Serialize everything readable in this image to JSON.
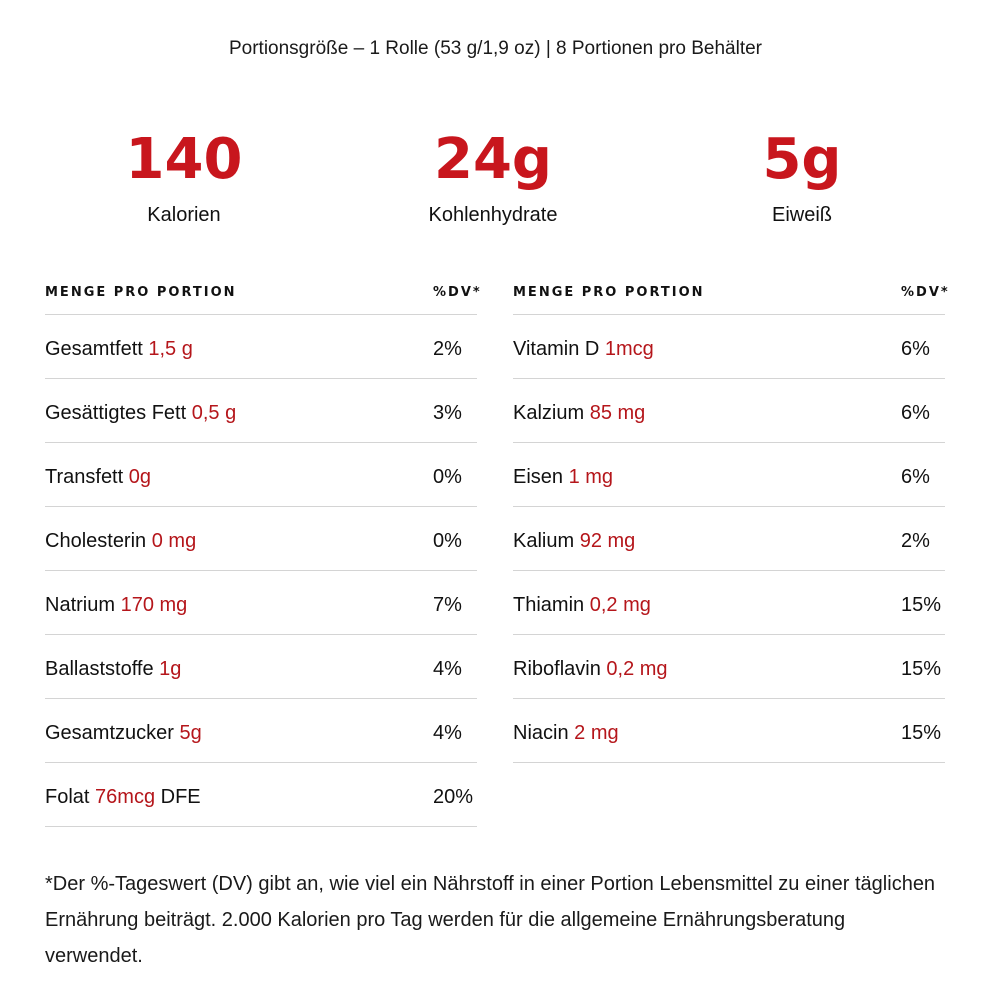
{
  "serving_text": "Portionsgröße – 1 Rolle (53 g/1,9 oz) | 8 Portionen pro Behälter",
  "stats": [
    {
      "value": "140",
      "label": "Kalorien"
    },
    {
      "value": "24g",
      "label": "Kohlenhydrate"
    },
    {
      "value": "5g",
      "label": "Eiweiß"
    }
  ],
  "header": {
    "amount_label": "MENGE PRO PORTION",
    "dv_label": "%DV*"
  },
  "left_rows": [
    {
      "name": "Gesamtfett",
      "amount": "1,5 g",
      "suffix": "",
      "dv": "2%"
    },
    {
      "name": "Gesättigtes Fett",
      "amount": "0,5 g",
      "suffix": "",
      "dv": "3%"
    },
    {
      "name": "Transfett",
      "amount": "0g",
      "suffix": "",
      "dv": "0%"
    },
    {
      "name": "Cholesterin",
      "amount": "0 mg",
      "suffix": "",
      "dv": "0%"
    },
    {
      "name": "Natrium",
      "amount": "170 mg",
      "suffix": "",
      "dv": "7%"
    },
    {
      "name": "Ballaststoffe",
      "amount": "1g",
      "suffix": "",
      "dv": "4%"
    },
    {
      "name": "Gesamtzucker",
      "amount": "5g",
      "suffix": "",
      "dv": "4%"
    },
    {
      "name": "Folat",
      "amount": "76mcg",
      "suffix": "DFE",
      "dv": "20%"
    }
  ],
  "right_rows": [
    {
      "name": "Vitamin D",
      "amount": "1mcg",
      "suffix": "",
      "dv": "6%"
    },
    {
      "name": "Kalzium",
      "amount": "85 mg",
      "suffix": "",
      "dv": "6%"
    },
    {
      "name": "Eisen",
      "amount": "1 mg",
      "suffix": "",
      "dv": "6%"
    },
    {
      "name": "Kalium",
      "amount": "92 mg",
      "suffix": "",
      "dv": "2%"
    },
    {
      "name": "Thiamin",
      "amount": "0,2 mg",
      "suffix": "",
      "dv": "15%"
    },
    {
      "name": "Riboflavin",
      "amount": "0,2 mg",
      "suffix": "",
      "dv": "15%"
    },
    {
      "name": "Niacin",
      "amount": "2 mg",
      "suffix": "",
      "dv": "15%"
    }
  ],
  "footnote": "*Der %-Tageswert (DV) gibt an, wie viel ein Nährstoff in einer Portion Lebensmittel zu einer täglichen Ernährung beiträgt. 2.000 Kalorien pro Tag werden für die allgemeine Ernährungsberatung verwendet.",
  "colors": {
    "accent_red": "#c8161d",
    "text": "#111111",
    "divider": "#d4d4d4"
  }
}
